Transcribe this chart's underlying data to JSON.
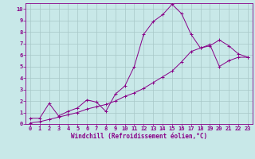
{
  "xlabel": "Windchill (Refroidissement éolien,°C)",
  "xlim": [
    -0.5,
    23.5
  ],
  "ylim": [
    0,
    10.5
  ],
  "xticks": [
    0,
    1,
    2,
    3,
    4,
    5,
    6,
    7,
    8,
    9,
    10,
    11,
    12,
    13,
    14,
    15,
    16,
    17,
    18,
    19,
    20,
    21,
    22,
    23
  ],
  "yticks": [
    0,
    1,
    2,
    3,
    4,
    5,
    6,
    7,
    8,
    9,
    10
  ],
  "bg_color": "#c8e8e8",
  "line_color": "#880088",
  "grid_color": "#a8c8c8",
  "spine_color": "#880088",
  "line1_x": [
    0,
    1,
    2,
    3,
    4,
    5,
    6,
    7,
    8,
    9,
    10,
    11,
    12,
    13,
    14,
    15,
    16,
    17,
    18,
    19,
    20,
    21,
    22,
    23
  ],
  "line1_y": [
    0.5,
    0.5,
    1.8,
    0.7,
    1.1,
    1.4,
    2.1,
    1.9,
    1.1,
    2.6,
    3.3,
    5.0,
    7.8,
    8.9,
    9.5,
    10.4,
    9.6,
    7.8,
    6.6,
    6.8,
    7.3,
    6.8,
    6.1,
    5.8
  ],
  "line2_x": [
    0,
    1,
    2,
    3,
    4,
    5,
    6,
    7,
    8,
    9,
    10,
    11,
    12,
    13,
    14,
    15,
    16,
    17,
    18,
    19,
    20,
    21,
    22,
    23
  ],
  "line2_y": [
    0.1,
    0.2,
    0.4,
    0.6,
    0.8,
    1.0,
    1.3,
    1.5,
    1.7,
    2.0,
    2.4,
    2.7,
    3.1,
    3.6,
    4.1,
    4.6,
    5.4,
    6.3,
    6.6,
    6.9,
    5.0,
    5.5,
    5.8,
    5.8
  ],
  "tick_fontsize": 5,
  "xlabel_fontsize": 5.5,
  "tick_color": "#880088",
  "lw": 0.7,
  "marker_size": 2.5
}
